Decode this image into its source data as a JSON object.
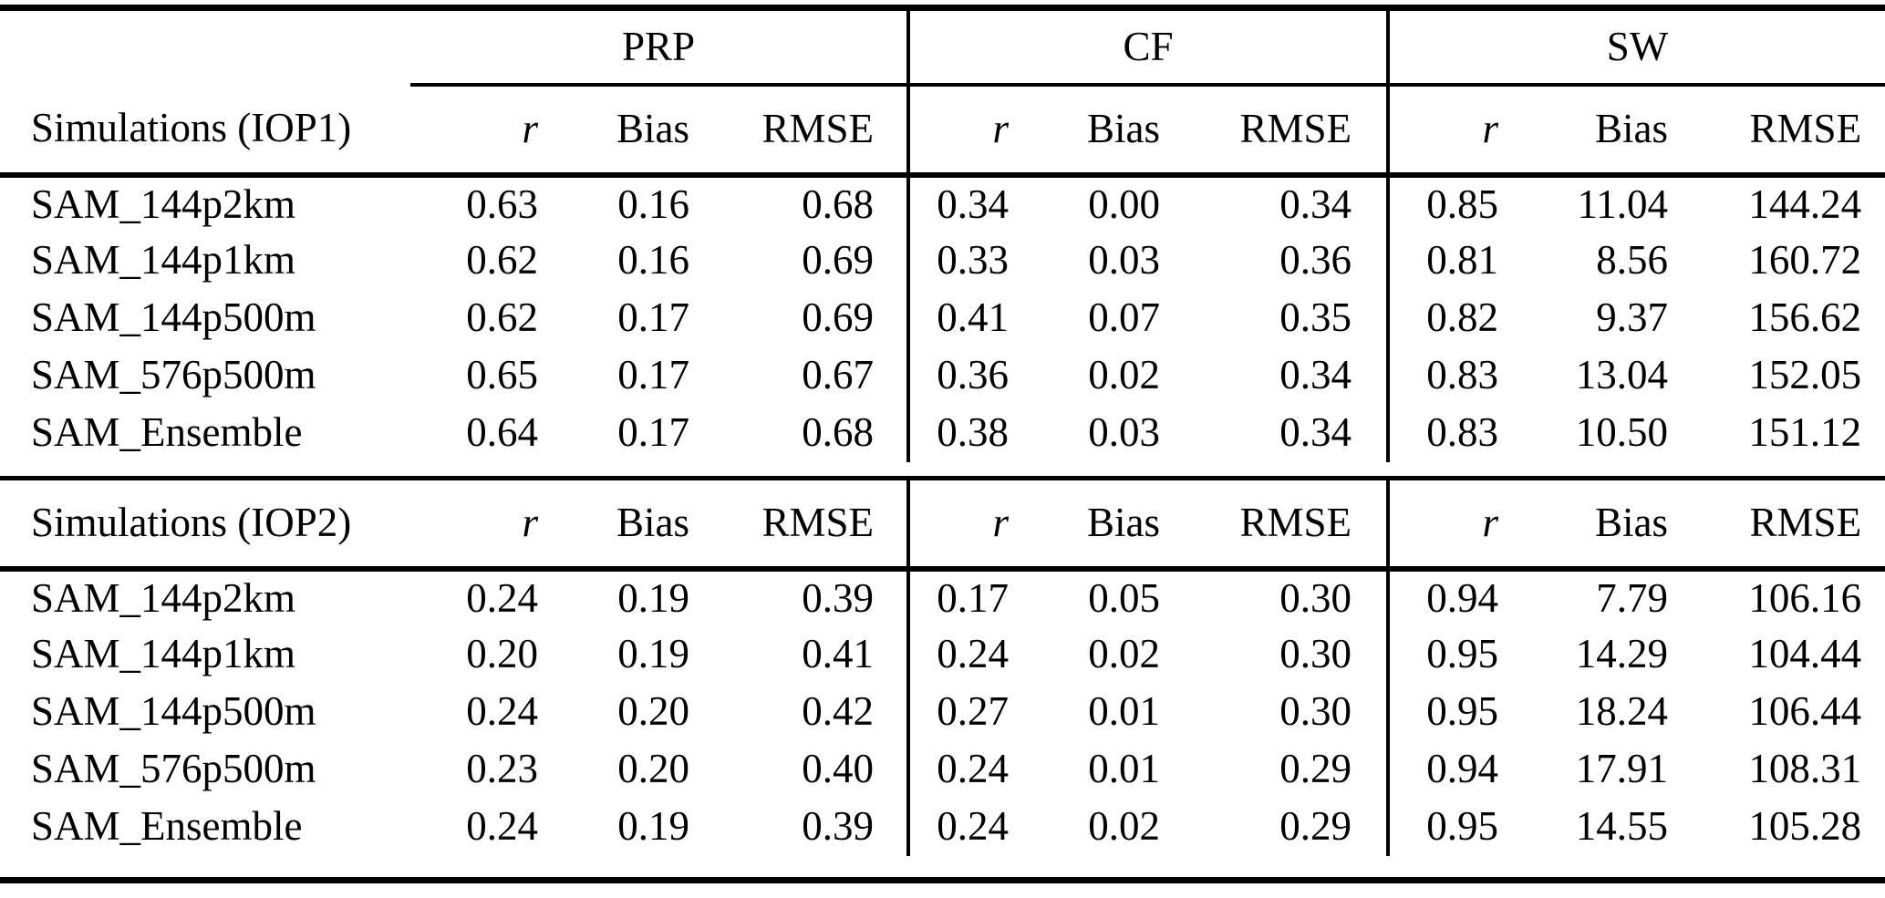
{
  "table": {
    "groups": [
      {
        "label": "PRP"
      },
      {
        "label": "CF"
      },
      {
        "label": "SW"
      }
    ],
    "metric_headers": {
      "r": "r",
      "bias": "Bias",
      "rmse": "RMSE"
    },
    "sections": [
      {
        "header": "Simulations (IOP1)",
        "rows": [
          {
            "name": "SAM_144p2km",
            "values": [
              "0.63",
              "0.16",
              "0.68",
              "0.34",
              "0.00",
              "0.34",
              "0.85",
              "11.04",
              "144.24"
            ]
          },
          {
            "name": "SAM_144p1km",
            "values": [
              "0.62",
              "0.16",
              "0.69",
              "0.33",
              "0.03",
              "0.36",
              "0.81",
              "8.56",
              "160.72"
            ]
          },
          {
            "name": "SAM_144p500m",
            "values": [
              "0.62",
              "0.17",
              "0.69",
              "0.41",
              "0.07",
              "0.35",
              "0.82",
              "9.37",
              "156.62"
            ]
          },
          {
            "name": "SAM_576p500m",
            "values": [
              "0.65",
              "0.17",
              "0.67",
              "0.36",
              "0.02",
              "0.34",
              "0.83",
              "13.04",
              "152.05"
            ]
          },
          {
            "name": "SAM_Ensemble",
            "values": [
              "0.64",
              "0.17",
              "0.68",
              "0.38",
              "0.03",
              "0.34",
              "0.83",
              "10.50",
              "151.12"
            ]
          }
        ]
      },
      {
        "header": "Simulations (IOP2)",
        "rows": [
          {
            "name": "SAM_144p2km",
            "values": [
              "0.24",
              "0.19",
              "0.39",
              "0.17",
              "0.05",
              "0.30",
              "0.94",
              "7.79",
              "106.16"
            ]
          },
          {
            "name": "SAM_144p1km",
            "values": [
              "0.20",
              "0.19",
              "0.41",
              "0.24",
              "0.02",
              "0.30",
              "0.95",
              "14.29",
              "104.44"
            ]
          },
          {
            "name": "SAM_144p500m",
            "values": [
              "0.24",
              "0.20",
              "0.42",
              "0.27",
              "0.01",
              "0.30",
              "0.95",
              "18.24",
              "106.44"
            ]
          },
          {
            "name": "SAM_576p500m",
            "values": [
              "0.23",
              "0.20",
              "0.40",
              "0.24",
              "0.01",
              "0.29",
              "0.94",
              "17.91",
              "108.31"
            ]
          },
          {
            "name": "SAM_Ensemble",
            "values": [
              "0.24",
              "0.19",
              "0.39",
              "0.24",
              "0.02",
              "0.29",
              "0.95",
              "14.55",
              "105.28"
            ]
          }
        ]
      }
    ],
    "colors": {
      "text": "#000000",
      "background": "#ffffff",
      "rule": "#000000"
    }
  }
}
